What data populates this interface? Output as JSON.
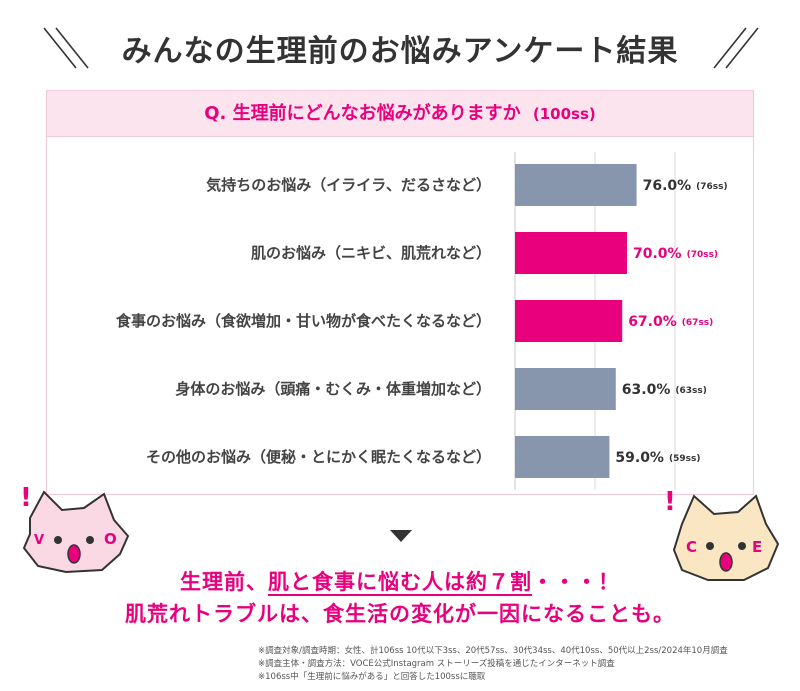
{
  "title": "みんなの生理前のお悩みアンケート結果",
  "question": {
    "text": "Q. 生理前にどんなお悩みがありますか",
    "count": "(100ss)"
  },
  "colors": {
    "accent": "#e8007d",
    "neutral_bar": "#8796ad",
    "panel_border": "#f3c7da",
    "question_bg": "#fce4ee"
  },
  "chart_data": {
    "type": "bar",
    "orientation": "horizontal",
    "categories": [
      "気持ちのお悩み（イライラ、だるさなど）",
      "肌のお悩み（ニキビ、肌荒れなど）",
      "食事のお悩み（食欲増加・甘い物が食べたくなるなど）",
      "身体のお悩み（頭痛・むくみ・体重増加など）",
      "その他のお悩み（便秘・とにかく眠たくなるなど）"
    ],
    "values": [
      76.0,
      70.0,
      67.0,
      63.0,
      59.0
    ],
    "value_labels": [
      "76.0%",
      "70.0%",
      "67.0%",
      "63.0%",
      "59.0%"
    ],
    "count_labels": [
      "(76ss)",
      "(70ss)",
      "(67ss)",
      "(63ss)",
      "(59ss)"
    ],
    "highlighted": [
      false,
      true,
      true,
      false,
      false
    ],
    "xlim": [
      0,
      100
    ],
    "grid": true
  },
  "conclusion": {
    "line1_pre": "生理前、",
    "line1_highlight": "肌と食事に悩む人は約７割",
    "line1_post": "・・・！",
    "line2": "肌荒れトラブルは、食生活の変化が一因になることも。"
  },
  "notes": [
    "※調査対象/調査時期：女性、計106ss 10代以下3ss、20代57ss、30代34ss、40代10ss、50代以上2ss/2024年10月調査",
    "※調査主体・調査方法：VOCE公式Instagram ストーリーズ投稿を通じたインターネット調査",
    "※106ss中「生理前に悩みがある」と回答した100ssに聴取"
  ],
  "mascots": {
    "left_letters": [
      "V",
      "O"
    ],
    "right_letters": [
      "C",
      "E"
    ],
    "exclamation": "!"
  }
}
